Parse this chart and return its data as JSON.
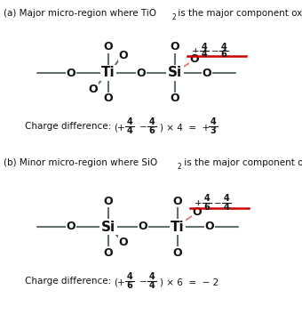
{
  "bg_color": "#ffffff",
  "bond_color": "#607070",
  "text_color": "#111111",
  "red_color": "#cc0000",
  "pink_color": "#e08080",
  "title_a1": "(a) Major micro-region where TiO",
  "title_a2": "2",
  "title_a3": " is the major component oxide",
  "title_b1": "(b) Minor micro-region where SiO",
  "title_b2": "2",
  "title_b3": " is the major component oxide"
}
